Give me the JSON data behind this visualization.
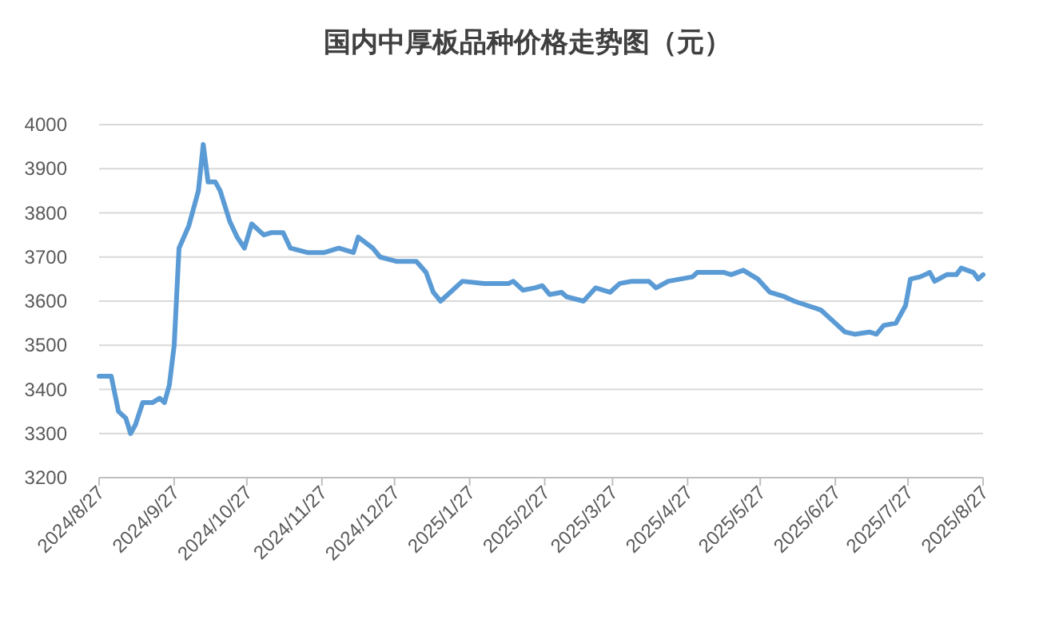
{
  "chart_data": {
    "type": "line",
    "title": "国内中厚板品种价格走势图（元）",
    "x": [
      "2024-08-27",
      "2024-09-01",
      "2024-09-04",
      "2024-09-07",
      "2024-09-09",
      "2024-09-11",
      "2024-09-14",
      "2024-09-18",
      "2024-09-21",
      "2024-09-23",
      "2024-09-25",
      "2024-09-27",
      "2024-09-29",
      "2024-10-03",
      "2024-10-07",
      "2024-10-09",
      "2024-10-11",
      "2024-10-14",
      "2024-10-16",
      "2024-10-20",
      "2024-10-23",
      "2024-10-26",
      "2024-10-29",
      "2024-11-03",
      "2024-11-06",
      "2024-11-11",
      "2024-11-14",
      "2024-11-21",
      "2024-11-28",
      "2024-12-04",
      "2024-12-10",
      "2024-12-12",
      "2024-12-18",
      "2024-12-21",
      "2024-12-28",
      "2025-01-05",
      "2025-01-09",
      "2025-01-12",
      "2025-01-15",
      "2025-01-20",
      "2025-01-24",
      "2025-02-02",
      "2025-02-12",
      "2025-02-14",
      "2025-02-18",
      "2025-02-23",
      "2025-02-26",
      "2025-03-01",
      "2025-03-06",
      "2025-03-08",
      "2025-03-15",
      "2025-03-20",
      "2025-03-26",
      "2025-03-30",
      "2025-04-04",
      "2025-04-11",
      "2025-04-14",
      "2025-04-19",
      "2025-04-29",
      "2025-05-01",
      "2025-05-12",
      "2025-05-15",
      "2025-05-20",
      "2025-05-26",
      "2025-05-31",
      "2025-06-06",
      "2025-06-10",
      "2025-06-21",
      "2025-06-27",
      "2025-07-01",
      "2025-07-05",
      "2025-07-11",
      "2025-07-14",
      "2025-07-17",
      "2025-07-22",
      "2025-07-26",
      "2025-07-28",
      "2025-08-01",
      "2025-08-03",
      "2025-08-05",
      "2025-08-07",
      "2025-08-12",
      "2025-08-16",
      "2025-08-18",
      "2025-08-23",
      "2025-08-25",
      "2025-08-27"
    ],
    "series": [
      {
        "color": "#5b9bd5",
        "values": [
          3430,
          3430,
          3350,
          3335,
          3300,
          3320,
          3370,
          3370,
          3380,
          3370,
          3410,
          3500,
          3720,
          3770,
          3850,
          3955,
          3870,
          3870,
          3850,
          3780,
          3745,
          3720,
          3775,
          3750,
          3755,
          3755,
          3720,
          3710,
          3710,
          3720,
          3710,
          3745,
          3720,
          3700,
          3690,
          3690,
          3665,
          3620,
          3600,
          3625,
          3645,
          3640,
          3640,
          3645,
          3625,
          3630,
          3635,
          3615,
          3620,
          3610,
          3600,
          3630,
          3620,
          3640,
          3645,
          3645,
          3630,
          3645,
          3655,
          3665,
          3665,
          3660,
          3670,
          3650,
          3620,
          3610,
          3600,
          3580,
          3550,
          3530,
          3525,
          3530,
          3525,
          3545,
          3550,
          3590,
          3650,
          3655,
          3660,
          3665,
          3645,
          3660,
          3660,
          3675,
          3665,
          3650,
          3660
        ]
      }
    ],
    "xlim": [
      "2024-08-27",
      "2025-08-27"
    ],
    "xticks": [
      {
        "value": "2024-08-27",
        "label": "2024/8/27"
      },
      {
        "value": "2024-09-27",
        "label": "2024/9/27"
      },
      {
        "value": "2024-10-27",
        "label": "2024/10/27"
      },
      {
        "value": "2024-11-27",
        "label": "2024/11/27"
      },
      {
        "value": "2024-12-27",
        "label": "2024/12/27"
      },
      {
        "value": "2025-01-27",
        "label": "2025/1/27"
      },
      {
        "value": "2025-02-27",
        "label": "2025/2/27"
      },
      {
        "value": "2025-03-27",
        "label": "2025/3/27"
      },
      {
        "value": "2025-04-27",
        "label": "2025/4/27"
      },
      {
        "value": "2025-05-27",
        "label": "2025/5/27"
      },
      {
        "value": "2025-06-27",
        "label": "2025/6/27"
      },
      {
        "value": "2025-07-27",
        "label": "2025/7/27"
      },
      {
        "value": "2025-08-27",
        "label": "2025/8/27"
      }
    ],
    "ylim": [
      3200,
      4000
    ],
    "yticks": [
      3200,
      3300,
      3400,
      3500,
      3600,
      3700,
      3800,
      3900,
      4000
    ],
    "grid": "y",
    "marker": "none",
    "line_style": "solid"
  }
}
